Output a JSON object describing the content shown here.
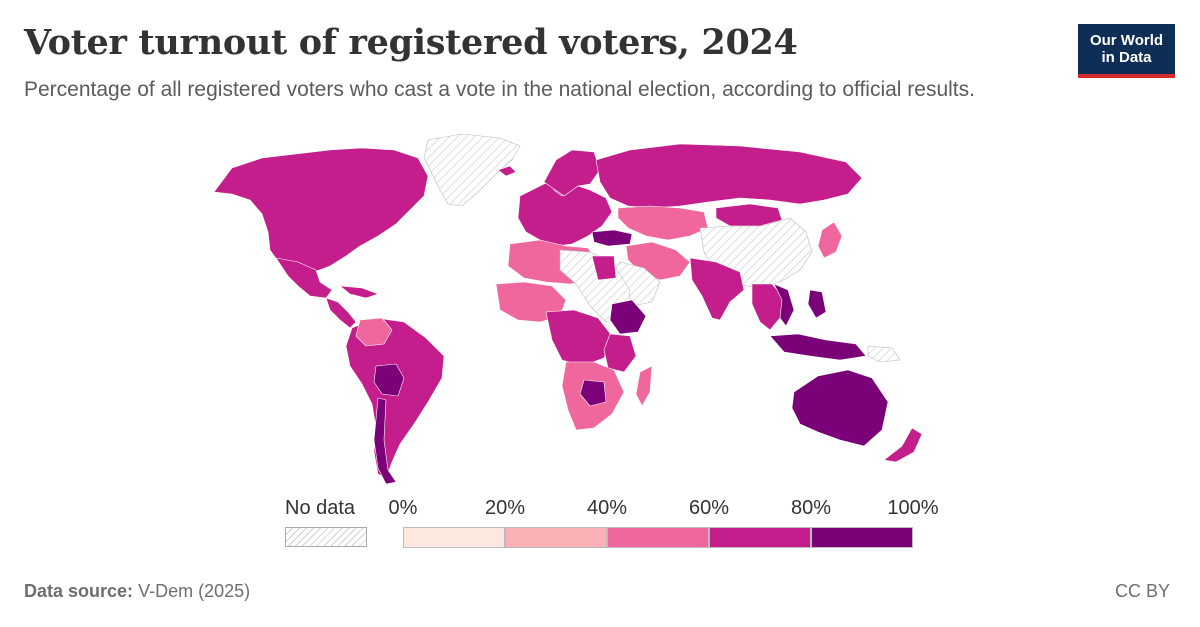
{
  "header": {
    "title": "Voter turnout of registered voters, 2024",
    "subtitle": "Percentage of all registered voters who cast a vote in the national election, according to official results."
  },
  "logo": {
    "line1": "Our World",
    "line2": "in Data",
    "background": "#0f2e56",
    "accent": "#d42b2b"
  },
  "legend": {
    "no_data_label": "No data",
    "ticks": [
      "0%",
      "20%",
      "40%",
      "60%",
      "80%",
      "100%"
    ],
    "bins": [
      {
        "range": "0-20%",
        "color": "#fde8e0"
      },
      {
        "range": "20-40%",
        "color": "#fbb0b6"
      },
      {
        "range": "40-60%",
        "color": "#f0679e"
      },
      {
        "range": "60-80%",
        "color": "#c41d8c"
      },
      {
        "range": "80-100%",
        "color": "#7a0177"
      }
    ]
  },
  "footer": {
    "source_label": "Data source:",
    "source_value": "V-Dem (2025)",
    "license": "CC BY"
  },
  "map_data": {
    "type": "choropleth",
    "unit": "%",
    "no_data_color": "hatched-grey",
    "regions": [
      {
        "name": "North America",
        "bin": "60-80%"
      },
      {
        "name": "Greenland",
        "bin": "no-data"
      },
      {
        "name": "Mexico",
        "bin": "60-80%"
      },
      {
        "name": "Central America",
        "bin": "60-80%"
      },
      {
        "name": "South America",
        "bin": "60-80%"
      },
      {
        "name": "Bolivia",
        "bin": "80-100%"
      },
      {
        "name": "Europe",
        "bin": "60-80%"
      },
      {
        "name": "Sweden",
        "bin": "80-100%"
      },
      {
        "name": "Turkey",
        "bin": "80-100%"
      },
      {
        "name": "Russia",
        "bin": "60-80%"
      },
      {
        "name": "Kazakhstan",
        "bin": "40-60%"
      },
      {
        "name": "China",
        "bin": "no-data"
      },
      {
        "name": "Mongolia",
        "bin": "60-80%"
      },
      {
        "name": "India",
        "bin": "60-80%"
      },
      {
        "name": "Iran",
        "bin": "40-60%"
      },
      {
        "name": "Saudi Arabia",
        "bin": "no-data"
      },
      {
        "name": "North Africa",
        "bin": "40-60%"
      },
      {
        "name": "Libya",
        "bin": "no-data"
      },
      {
        "name": "Egypt",
        "bin": "40-60%"
      },
      {
        "name": "West Africa",
        "bin": "40-60%"
      },
      {
        "name": "Central Africa",
        "bin": "60-80%"
      },
      {
        "name": "Ethiopia",
        "bin": "80-100%"
      },
      {
        "name": "Southern Africa",
        "bin": "40-60%"
      },
      {
        "name": "Madagascar",
        "bin": "40-60%"
      },
      {
        "name": "Southeast Asia",
        "bin": "60-80%"
      },
      {
        "name": "Vietnam",
        "bin": "80-100%"
      },
      {
        "name": "Indonesia",
        "bin": "80-100%"
      },
      {
        "name": "Japan",
        "bin": "40-60%"
      },
      {
        "name": "Australia",
        "bin": "80-100%"
      },
      {
        "name": "New Zealand",
        "bin": "60-80%"
      }
    ]
  }
}
